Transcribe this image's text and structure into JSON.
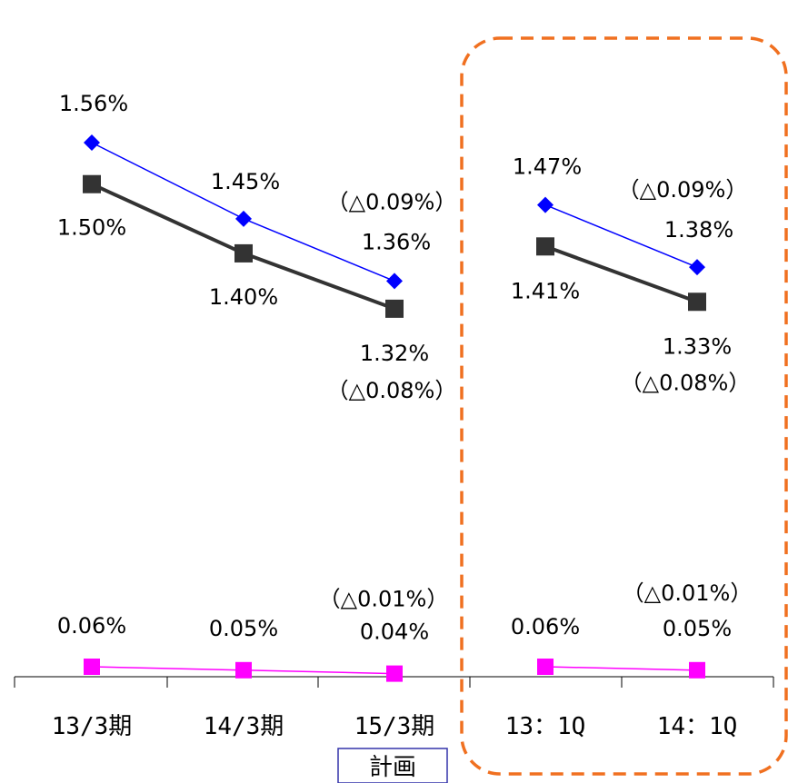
{
  "colors": {
    "series_top": "#0000ff",
    "series_mid": "#333333",
    "series_bottom": "#ff00ff",
    "highlight_box": "#f07020",
    "plan_box": "#3333aa"
  },
  "chart_data": {
    "type": "line",
    "categories": [
      "13/3期",
      "14/3期",
      "15/3期",
      "13：1Q",
      "14：1Q"
    ],
    "plan_label": "計画",
    "series": [
      {
        "values": [
          1.56,
          1.45,
          1.36,
          1.47,
          1.38
        ],
        "labels": [
          "1.56%",
          "1.45%",
          "1.36%",
          "1.47%",
          "1.38%"
        ],
        "deltas": [
          "",
          "",
          "（△0.09%）",
          "",
          "（△0.09%）"
        ],
        "marker": "diamond"
      },
      {
        "values": [
          1.5,
          1.4,
          1.32,
          1.41,
          1.33
        ],
        "labels": [
          "1.50%",
          "1.40%",
          "1.32%",
          "1.41%",
          "1.33%"
        ],
        "deltas": [
          "",
          "",
          "（△0.08%）",
          "",
          "（△0.08%）"
        ],
        "marker": "square"
      },
      {
        "values": [
          0.06,
          0.05,
          0.04,
          0.06,
          0.05
        ],
        "labels": [
          "0.06%",
          "0.05%",
          "0.04%",
          "0.06%",
          "0.05%"
        ],
        "deltas": [
          "",
          "",
          "（△0.01%）",
          "",
          "（△0.01%）"
        ],
        "marker": "square"
      }
    ]
  }
}
